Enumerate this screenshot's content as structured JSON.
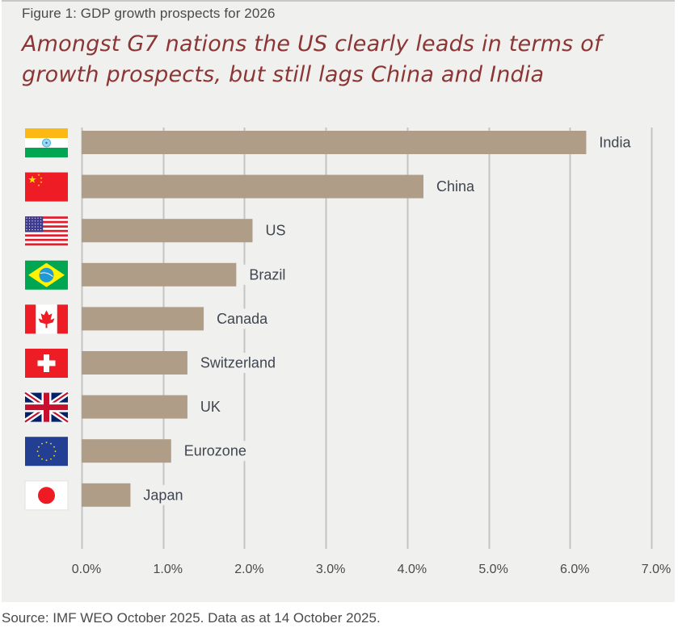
{
  "figure_label": "Figure 1: GDP growth prospects for 2026",
  "headline_line1": "Amongst G7 nations the US clearly leads in terms of",
  "headline_line2": "growth prospects, but still lags China and India",
  "source": "Source: IMF WEO October 2025. Data as at 14 October 2025.",
  "colors": {
    "bar": "#b09d88",
    "grid": "#c4c4c4",
    "headline": "#8b3535",
    "panel": "#f0f0ee"
  },
  "chart_data": {
    "type": "bar",
    "orientation": "horizontal",
    "title": "Figure 1: GDP growth prospects for 2026",
    "xlabel": "",
    "ylabel": "",
    "categories": [
      "India",
      "China",
      "US",
      "Brazil",
      "Canada",
      "Switzerland",
      "UK",
      "Eurozone",
      "Japan"
    ],
    "flags": [
      "india-flag-icon",
      "china-flag-icon",
      "us-flag-icon",
      "brazil-flag-icon",
      "canada-flag-icon",
      "switzerland-flag-icon",
      "uk-flag-icon",
      "eu-flag-icon",
      "japan-flag-icon"
    ],
    "values": [
      6.2,
      4.2,
      2.1,
      1.9,
      1.5,
      1.3,
      1.3,
      1.1,
      0.6
    ],
    "unit": "%",
    "xlim": [
      0,
      7
    ],
    "x_ticks": [
      0,
      1,
      2,
      3,
      4,
      5,
      6,
      7
    ],
    "x_tick_labels": [
      "0.0%",
      "1.0%",
      "2.0%",
      "3.0%",
      "4.0%",
      "5.0%",
      "6.0%",
      "7.0%"
    ],
    "grid": "vertical",
    "legend": "none"
  }
}
